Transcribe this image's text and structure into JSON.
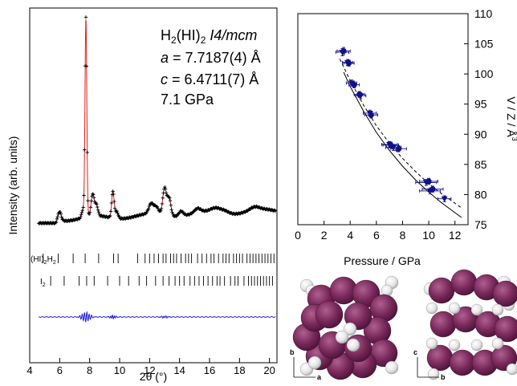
{
  "chart_data": [
    {
      "type": "line",
      "xlabel": "2θ (°)",
      "ylabel": "Intensity (arb. units)",
      "xlim": [
        4,
        20.5
      ],
      "xticks": [
        "4",
        "6",
        "8",
        "10",
        "12",
        "14",
        "16",
        "18",
        "20"
      ],
      "legend_placement": "top-right",
      "annotations": {
        "phase_pre": "H",
        "phase_sub1": "2",
        "phase_mid": "(HI)",
        "phase_sub2": "2",
        "space_group": "I4/mcm",
        "lattice_a_var": "a",
        "lattice_a_val": " = 7.7187(4) Å",
        "lattice_c_var": "c",
        "lattice_c_val": " = 6.4711(7) Å",
        "pressure": "7.1 GPa"
      },
      "tick_rows": [
        {
          "label_main": "(HI)",
          "label_sub1": "2",
          "label_mid": "H",
          "label_sub2": "2",
          "positions": [
            4.9,
            5.9,
            6.9,
            7.7,
            8.6,
            9.6,
            9.9,
            11.2,
            11.7,
            12.0,
            12.3,
            12.6,
            12.9,
            13.1,
            13.4,
            13.6,
            13.8,
            14.1,
            14.4,
            14.6,
            14.8,
            15.2,
            15.5,
            15.8,
            16.1,
            16.3,
            16.6,
            16.9,
            17.1,
            17.3,
            17.6,
            17.8,
            18.0,
            18.2,
            18.5,
            18.7,
            18.9,
            19.1,
            19.3,
            19.5,
            19.7,
            19.9,
            20.1,
            20.3
          ]
        },
        {
          "label_main": "I",
          "label_sub1": "2",
          "positions": [
            5.4,
            6.3,
            7.3,
            7.8,
            8.3,
            9.2,
            10.0,
            10.6,
            11.3,
            11.8,
            12.4,
            12.9,
            13.3,
            13.7,
            14.0,
            14.3,
            14.7,
            15.0,
            15.3,
            15.6,
            15.9,
            16.2,
            16.5,
            16.7,
            17.0,
            17.4,
            17.7,
            17.9,
            18.3,
            18.6,
            18.8,
            19.0,
            19.2,
            19.4,
            19.6,
            19.8,
            20.0,
            20.2
          ]
        }
      ],
      "series": [
        {
          "name": "observed",
          "style": "black plus markers",
          "color": "#000000"
        },
        {
          "name": "calculated",
          "style": "red line",
          "color": "#e0201b"
        },
        {
          "name": "difference",
          "style": "blue line",
          "color": "#1a1adc"
        }
      ],
      "profile_peaks": [
        {
          "x": 6.0,
          "h": 0.045,
          "w": 0.1
        },
        {
          "x": 7.75,
          "h": 1.0,
          "w": 0.06
        },
        {
          "x": 7.55,
          "h": 0.04,
          "w": 0.08
        },
        {
          "x": 8.2,
          "h": 0.11,
          "w": 0.1
        },
        {
          "x": 8.45,
          "h": 0.055,
          "w": 0.1
        },
        {
          "x": 9.55,
          "h": 0.135,
          "w": 0.08
        },
        {
          "x": 9.8,
          "h": 0.035,
          "w": 0.1
        },
        {
          "x": 12.1,
          "h": 0.05,
          "w": 0.15
        },
        {
          "x": 12.45,
          "h": 0.035,
          "w": 0.15
        },
        {
          "x": 13.0,
          "h": 0.135,
          "w": 0.12
        },
        {
          "x": 13.3,
          "h": 0.09,
          "w": 0.12
        },
        {
          "x": 14.1,
          "h": 0.025,
          "w": 0.15
        },
        {
          "x": 15.2,
          "h": 0.02,
          "w": 0.2
        },
        {
          "x": 16.4,
          "h": 0.02,
          "w": 0.3
        },
        {
          "x": 17.0,
          "h": 0.015,
          "w": 0.3
        },
        {
          "x": 19.0,
          "h": 0.015,
          "w": 0.3
        }
      ]
    },
    {
      "type": "scatter",
      "xlabel": "Pressure / GPa",
      "ylabel": "V / Z / Å3",
      "ylabel_main": "V / Z / Å",
      "ylabel_sup": "3",
      "xlim": [
        0,
        13
      ],
      "ylim": [
        75,
        110
      ],
      "xticks": [
        0,
        2,
        4,
        6,
        8,
        10,
        12
      ],
      "yticks": [
        75,
        80,
        85,
        90,
        95,
        100,
        105,
        110
      ],
      "y_axis_position": "right",
      "marker_color": "#101088",
      "series": [
        {
          "name": "circles",
          "marker": "circle",
          "points": [
            {
              "x": 3.5,
              "y": 103.8,
              "xerr": 0.5,
              "yerr": 0.6
            },
            {
              "x": 3.9,
              "y": 101.8,
              "xerr": 0.4,
              "yerr": 0.5
            },
            {
              "x": 4.3,
              "y": 98.2,
              "xerr": 0.4,
              "yerr": 0.5
            },
            {
              "x": 4.7,
              "y": 96.6,
              "xerr": 0.4,
              "yerr": 0.5
            },
            {
              "x": 5.6,
              "y": 93.2,
              "xerr": 0.5,
              "yerr": 0.5
            },
            {
              "x": 7.1,
              "y": 88.2,
              "xerr": 0.6,
              "yerr": 0.5
            },
            {
              "x": 7.7,
              "y": 87.6,
              "xerr": 0.6,
              "yerr": 0.5
            },
            {
              "x": 10.0,
              "y": 82.2,
              "xerr": 0.7,
              "yerr": 0.5
            },
            {
              "x": 10.3,
              "y": 80.9,
              "xerr": 0.8,
              "yerr": 0.5
            }
          ]
        },
        {
          "name": "triangles",
          "marker": "triangle-down",
          "points": [
            {
              "x": 3.4,
              "y": 103.6,
              "xerr": 0.5,
              "yerr": 0.6
            },
            {
              "x": 3.8,
              "y": 101.9,
              "xerr": 0.4,
              "yerr": 0.5
            },
            {
              "x": 4.1,
              "y": 98.5,
              "xerr": 0.4,
              "yerr": 0.5
            },
            {
              "x": 4.8,
              "y": 96.4,
              "xerr": 0.4,
              "yerr": 0.5
            },
            {
              "x": 5.5,
              "y": 93.5,
              "xerr": 0.5,
              "yerr": 0.5
            },
            {
              "x": 7.0,
              "y": 88.3,
              "xerr": 0.6,
              "yerr": 0.5
            },
            {
              "x": 7.3,
              "y": 87.8,
              "xerr": 0.6,
              "yerr": 0.5
            },
            {
              "x": 9.8,
              "y": 82.0,
              "xerr": 0.8,
              "yerr": 0.5
            },
            {
              "x": 10.1,
              "y": 80.6,
              "xerr": 0.8,
              "yerr": 0.5
            },
            {
              "x": 11.2,
              "y": 79.3,
              "xerr": 0.5,
              "yerr": 0.5
            }
          ]
        }
      ],
      "fits": [
        {
          "name": "dashed fit",
          "style": "dashed",
          "x": [
            3.2,
            4,
            5,
            6,
            7,
            8,
            9,
            10,
            11,
            12.5
          ],
          "y": [
            102.5,
            98.9,
            94.9,
            91.4,
            88.5,
            86.0,
            83.8,
            81.8,
            80.1,
            77.8
          ]
        },
        {
          "name": "solid fit",
          "style": "solid",
          "x": [
            3.5,
            4,
            5,
            6,
            7,
            8,
            9,
            10,
            11,
            12.5
          ],
          "y": [
            100.3,
            97.9,
            93.9,
            90.3,
            87.3,
            84.7,
            82.4,
            80.4,
            78.6,
            76.2
          ]
        }
      ]
    }
  ],
  "structure_views": [
    {
      "axis_labels": [
        "b",
        "a"
      ],
      "colors": {
        "iodine": "#7a2a5c",
        "hydrogen": "#e6e6e6"
      }
    },
    {
      "axis_labels": [
        "c",
        "b"
      ],
      "colors": {
        "iodine": "#7a2a5c",
        "hydrogen": "#e6e6e6"
      }
    }
  ]
}
